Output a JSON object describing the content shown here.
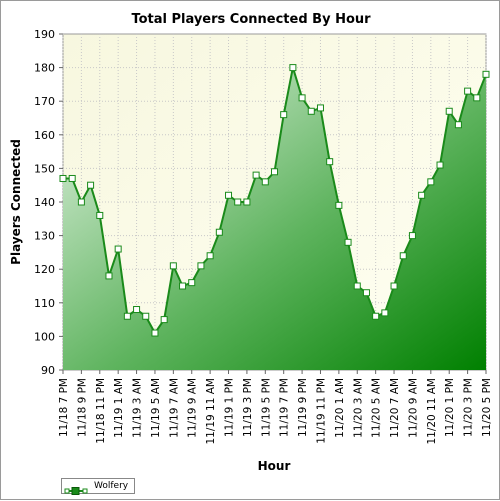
{
  "chart_data": {
    "type": "area",
    "title": "Total Players Connected By Hour",
    "xlabel": "Hour",
    "ylabel": "Players Connected",
    "ylim": [
      90,
      190
    ],
    "yticks": [
      90,
      100,
      110,
      120,
      130,
      140,
      150,
      160,
      170,
      180,
      190
    ],
    "grid": true,
    "legend_position": "bottom-left",
    "x_tick_labels": [
      "11/18 7 PM",
      "11/18 9 PM",
      "11/18 11 PM",
      "11/19 1 AM",
      "11/19 3 AM",
      "11/19 5 AM",
      "11/19 7 AM",
      "11/19 9 AM",
      "11/19 11 AM",
      "11/19 1 PM",
      "11/19 3 PM",
      "11/19 5 PM",
      "11/19 7 PM",
      "11/19 9 PM",
      "11/19 11 PM",
      "11/20 1 AM",
      "11/20 3 AM",
      "11/20 5 AM",
      "11/20 7 AM",
      "11/20 9 AM",
      "11/20 11 AM",
      "11/20 1 PM",
      "11/20 3 PM",
      "11/20 5 PM"
    ],
    "series": [
      {
        "name": "Wolfery",
        "color": "#1a8a1a",
        "values": [
          147,
          147,
          140,
          145,
          136,
          118,
          126,
          106,
          108,
          106,
          101,
          105,
          121,
          115,
          116,
          121,
          124,
          131,
          142,
          140,
          140,
          148,
          146,
          149,
          166,
          180,
          171,
          167,
          168,
          152,
          139,
          128,
          115,
          113,
          106,
          107,
          115,
          124,
          130,
          142,
          146,
          151,
          167,
          163,
          173,
          171,
          178
        ]
      }
    ]
  }
}
